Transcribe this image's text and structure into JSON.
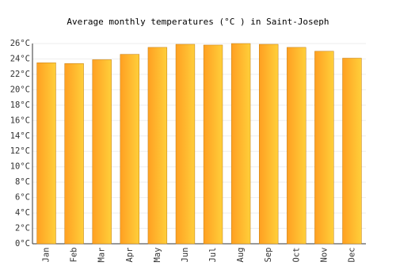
{
  "chart_data": {
    "type": "bar",
    "title": "Average monthly temperatures (°C ) in Saint-Joseph",
    "categories": [
      "Jan",
      "Feb",
      "Mar",
      "Apr",
      "May",
      "Jun",
      "Jul",
      "Aug",
      "Sep",
      "Oct",
      "Nov",
      "Dec"
    ],
    "values": [
      23.5,
      23.4,
      23.9,
      24.6,
      25.5,
      25.9,
      25.8,
      26.0,
      25.9,
      25.5,
      25.0,
      24.1
    ],
    "color": "#ffa022",
    "ylim": [
      0,
      26
    ],
    "yticks": [
      {
        "value": 0,
        "label": "0°C"
      },
      {
        "value": 2,
        "label": "2°C"
      },
      {
        "value": 4,
        "label": "4°C"
      },
      {
        "value": 6,
        "label": "6°C"
      },
      {
        "value": 8,
        "label": "8°C"
      },
      {
        "value": 10,
        "label": "10°C"
      },
      {
        "value": 12,
        "label": "12°C"
      },
      {
        "value": 14,
        "label": "14°C"
      },
      {
        "value": 16,
        "label": "16°C"
      },
      {
        "value": 18,
        "label": "18°C"
      },
      {
        "value": 20,
        "label": "20°C"
      },
      {
        "value": 22,
        "label": "22°C"
      },
      {
        "value": 24,
        "label": "24°C"
      },
      {
        "value": 26,
        "label": "26°C"
      }
    ],
    "grid": true
  }
}
